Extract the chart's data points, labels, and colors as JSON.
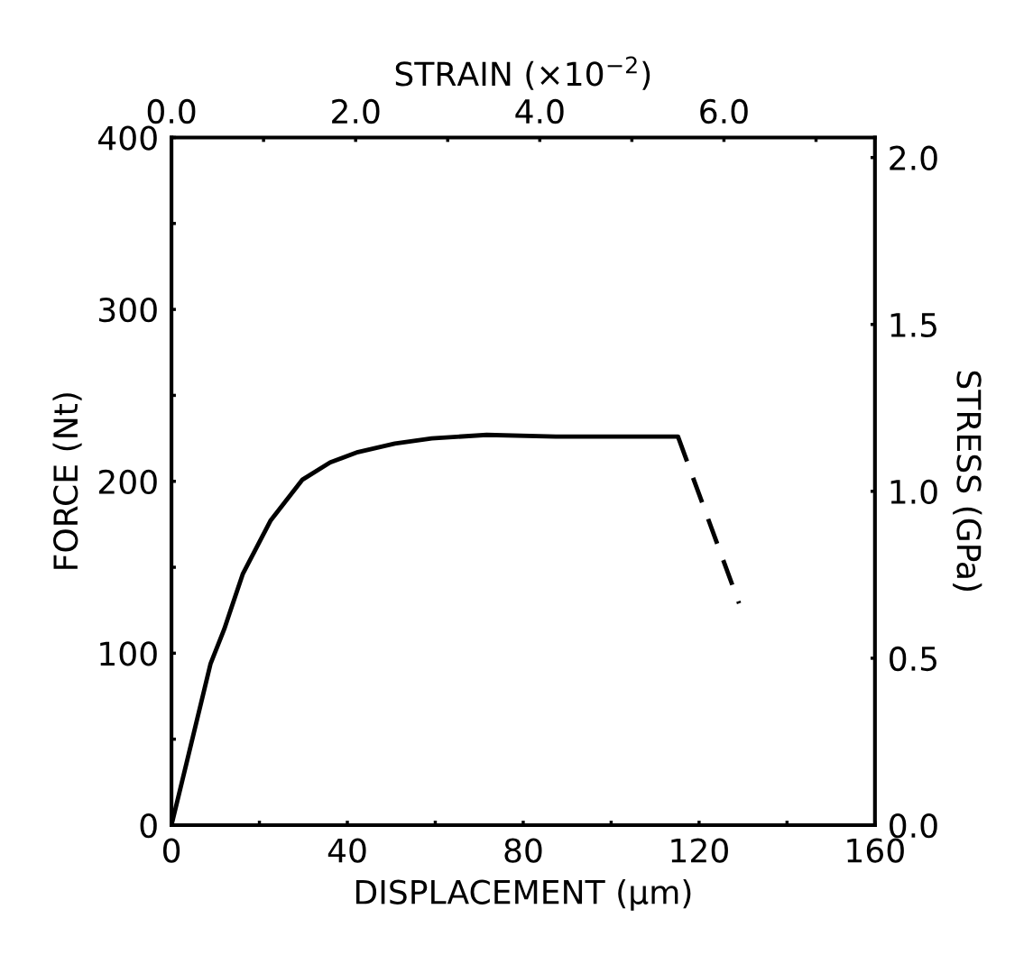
{
  "chart_data": {
    "type": "line",
    "xlabel": "DISPLACEMENT (μm)",
    "ylabel": "FORCE (Nt)",
    "y2label": "STRESS (GPa)",
    "x2label": "STRAIN (×10$^{−2}$)",
    "series": [
      {
        "color": "#000000",
        "line_style": "solid",
        "x": [
          0,
          3.7,
          8.9,
          12.0,
          16.2,
          22.5,
          29.8,
          36.1,
          42.4,
          50.8,
          59.2,
          71.7,
          87.4,
          103,
          115.2
        ],
        "values": [
          0,
          39,
          94,
          114,
          146,
          177,
          201,
          211,
          217,
          222,
          225,
          227,
          226,
          226,
          226
        ]
      },
      {
        "color": "#000000",
        "line_style": "dashed",
        "x": [
          115.2,
          129.1
        ],
        "values": [
          226,
          129
        ]
      }
    ],
    "xlim": [
      0,
      160
    ],
    "xticks": [
      0,
      {
        "value": 20,
        "label": null
      },
      40,
      {
        "value": 60,
        "label": null
      },
      80,
      {
        "value": 100,
        "label": null
      },
      120,
      {
        "value": 140,
        "label": null
      },
      160
    ],
    "ylim": [
      0,
      400
    ],
    "yticks": [
      0,
      {
        "value": 50,
        "label": null
      },
      100,
      {
        "value": 150,
        "label": null
      },
      200,
      {
        "value": 250,
        "label": null
      },
      300,
      {
        "value": 350,
        "label": null
      },
      400
    ],
    "y2lim": [
      0,
      2.06
    ],
    "y2ticks": [
      {
        "value": 0,
        "label": "0.0"
      },
      0.5,
      {
        "value": 1,
        "label": "1.0"
      },
      1.5,
      {
        "value": 2,
        "label": "2.0"
      }
    ],
    "x2lim": [
      0,
      7.64
    ],
    "x2ticks": [
      {
        "value": 0,
        "label": "0.0"
      },
      {
        "value": 1,
        "label": null
      },
      {
        "value": 2,
        "label": "2.0"
      },
      {
        "value": 3,
        "label": null
      },
      {
        "value": 4,
        "label": "4.0"
      },
      {
        "value": 5,
        "label": null
      },
      {
        "value": 6,
        "label": "6.0"
      },
      {
        "value": 7,
        "label": null
      }
    ],
    "grid": false,
    "legend": false
  }
}
